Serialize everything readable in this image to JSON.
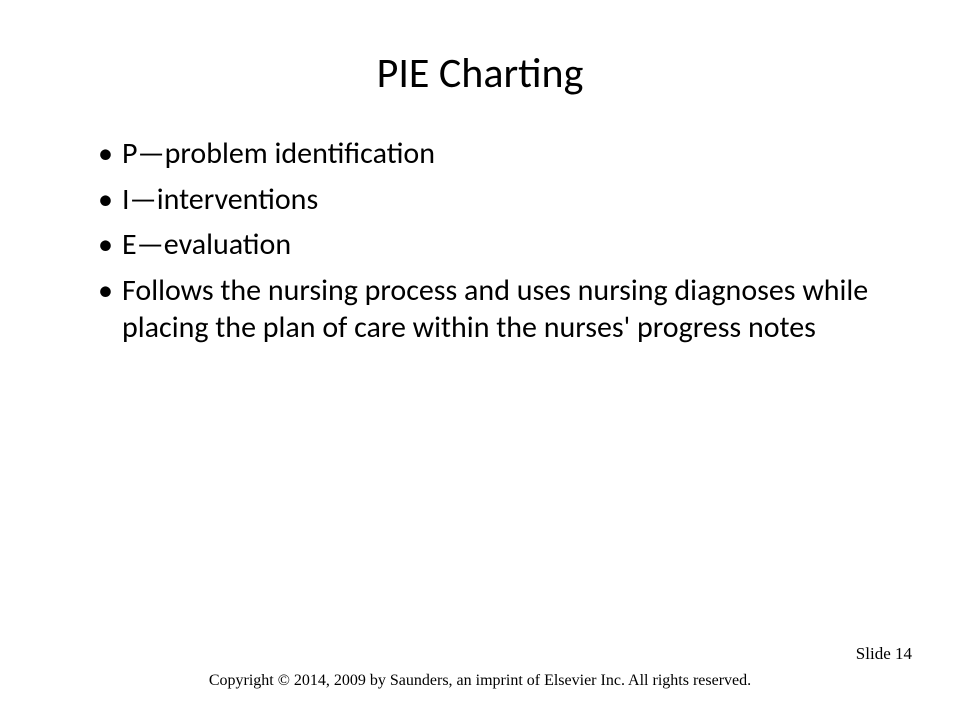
{
  "slide": {
    "title": "PIE Charting",
    "bullets": [
      "P—problem identification",
      "I—interventions",
      "E—evaluation",
      "Follows the nursing process and uses nursing diagnoses while placing the plan of care within the nurses' progress notes"
    ],
    "slide_number_label": "Slide 14",
    "copyright": "Copyright © 2014, 2009 by Saunders, an imprint of Elsevier Inc. All rights reserved."
  },
  "style": {
    "background_color": "#ffffff",
    "text_color": "#000000",
    "title_fontsize_pt": 32,
    "body_fontsize_pt": 23,
    "footer_fontsize_pt": 12,
    "title_font": "Calibri",
    "footer_font": "Times New Roman"
  }
}
